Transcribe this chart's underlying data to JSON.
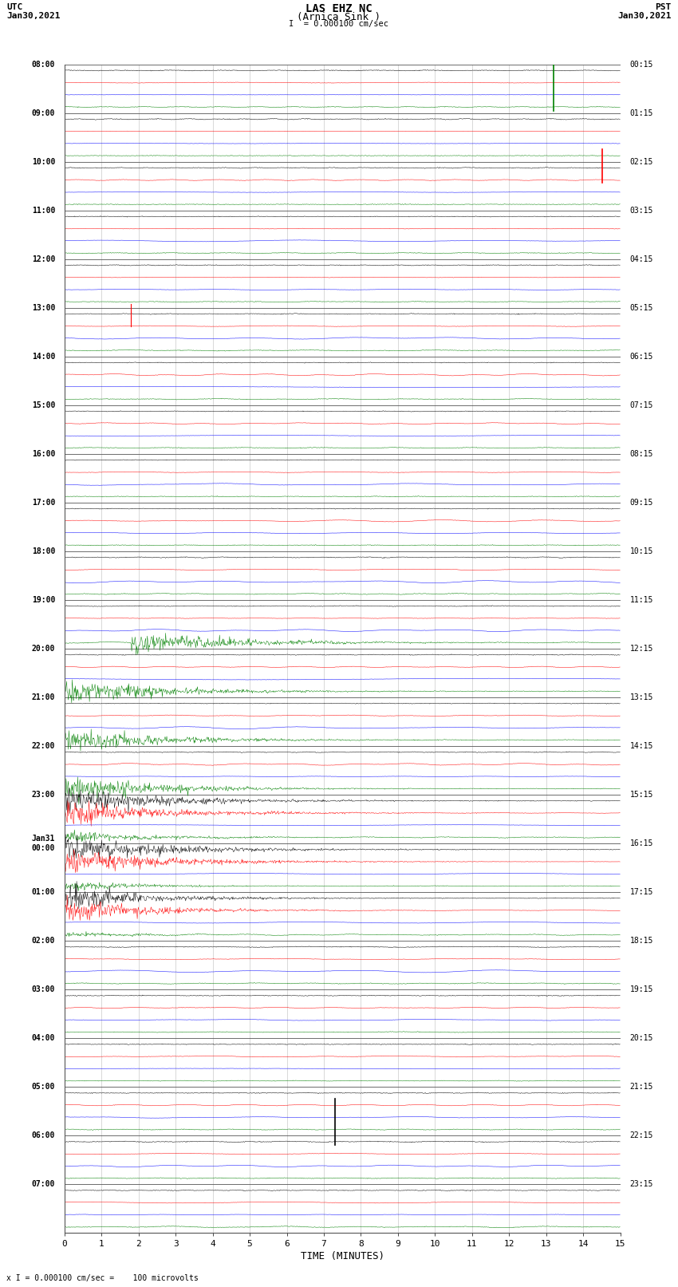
{
  "title_line1": "LAS EHZ NC",
  "title_line2": "(Arnica Sink )",
  "scale_label": "I  = 0.000100 cm/sec",
  "left_header_line1": "UTC",
  "left_header_line2": "Jan30,2021",
  "right_header_line1": "PST",
  "right_header_line2": "Jan30,2021",
  "xlabel": "TIME (MINUTES)",
  "footer": "x I = 0.000100 cm/sec =    100 microvolts",
  "utc_times": [
    "08:00",
    "09:00",
    "10:00",
    "11:00",
    "12:00",
    "13:00",
    "14:00",
    "15:00",
    "16:00",
    "17:00",
    "18:00",
    "19:00",
    "20:00",
    "21:00",
    "22:00",
    "23:00",
    "Jan31\n00:00",
    "01:00",
    "02:00",
    "03:00",
    "04:00",
    "05:00",
    "06:00",
    "07:00"
  ],
  "pst_times": [
    "00:15",
    "01:15",
    "02:15",
    "03:15",
    "04:15",
    "05:15",
    "06:15",
    "07:15",
    "08:15",
    "09:15",
    "10:15",
    "11:15",
    "12:15",
    "13:15",
    "14:15",
    "15:15",
    "16:15",
    "17:15",
    "18:15",
    "19:15",
    "20:15",
    "21:15",
    "22:15",
    "23:15"
  ],
  "n_rows": 24,
  "time_minutes": 15,
  "background_color": "#ffffff",
  "grid_minor_color": "#bbbbbb",
  "grid_major_color": "#555555",
  "trace_colors_top_to_bottom": [
    "#000000",
    "#ff0000",
    "#0000ff",
    "#008000"
  ],
  "fig_width": 8.5,
  "fig_height": 16.13,
  "eq_green_rows": [
    11,
    12,
    13,
    14
  ],
  "eq_red_rows": [
    15,
    16,
    17
  ],
  "eq_black_rows": [
    15,
    16,
    17
  ],
  "spike_green_row0_t": 13.2,
  "spike_red_row2_t": 14.5,
  "spike_black_row22_t": 7.3
}
